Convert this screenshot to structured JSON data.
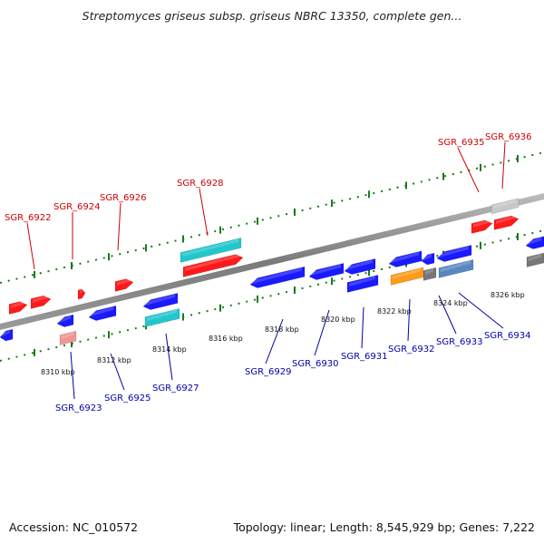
{
  "title": "Streptomyces griseus subsp. griseus NBRC 13350, complete gen...",
  "footer": {
    "accession": "Accession: NC_010572",
    "topology": "Topology: linear; Length: 8,545,929 bp; Genes: 7,222"
  },
  "colors": {
    "forward_label": "#cc0000",
    "reverse_label": "#0000aa",
    "forward_gene": "#ff1a1a",
    "reverse_gene": "#1a1aff",
    "rna_gene": "#22c7cc",
    "pseudo_light_red": "#f09595",
    "grey_gene": "#c8c8c8",
    "orange_gene": "#ff9a1a",
    "steel_gene": "#5a86c0",
    "dark_grey_gene": "#777777",
    "axis": "#888888",
    "tick": "#1a7a1a"
  },
  "axis_labels": [
    "8310 kbp",
    "8312 kbp",
    "8314 kbp",
    "8316 kbp",
    "8318 kbp",
    "8320 kbp",
    "8322 kbp",
    "8324 kbp",
    "8326 kbp"
  ],
  "forward_gene_labels": [
    "SGR_6922",
    "SGR_6924",
    "SGR_6926",
    "SGR_6928",
    "SGR_6935",
    "SGR_6936"
  ],
  "reverse_gene_labels": [
    "SGR_6923",
    "SGR_6925",
    "SGR_6927",
    "SGR_6929",
    "SGR_6930",
    "SGR_6931",
    "SGR_6932",
    "SGR_6933",
    "SGR_6934"
  ]
}
